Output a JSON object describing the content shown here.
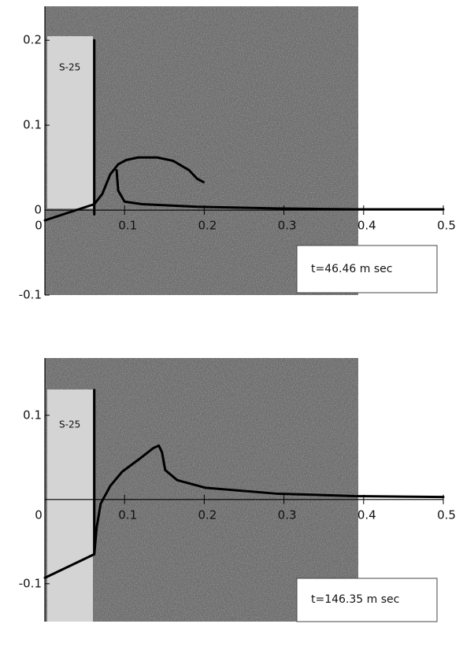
{
  "chart_data": [
    {
      "type": "line",
      "annotations": [
        "S-25",
        "t=46.46 m sec"
      ],
      "xlim": [
        0,
        0.5
      ],
      "ylim": [
        -0.1,
        0.24
      ],
      "xticks": [
        0,
        0.1,
        0.2,
        0.3,
        0.4,
        0.5
      ],
      "yticks": [
        -0.1,
        0,
        0.1,
        0.2
      ],
      "series": [
        {
          "color": "#000000",
          "x": [
            0.062,
            0.062
          ],
          "values": [
            -0.005,
            0.2
          ]
        },
        {
          "color": "#000000",
          "x": [
            0,
            0.062,
            0.072,
            0.082,
            0.092,
            0.102,
            0.117,
            0.141,
            0.161,
            0.181,
            0.191,
            0.199
          ],
          "values": [
            -0.012,
            0.007,
            0.019,
            0.042,
            0.054,
            0.059,
            0.062,
            0.062,
            0.058,
            0.047,
            0.037,
            0.033
          ]
        },
        {
          "color": "#000000",
          "x": [
            0.09,
            0.092,
            0.1,
            0.122,
            0.191,
            0.29,
            0.388,
            0.5
          ],
          "values": [
            0.047,
            0.023,
            0.01,
            0.007,
            0.004,
            0.002,
            0.001,
            0.001
          ]
        }
      ]
    },
    {
      "type": "line",
      "annotations": [
        "S-25",
        "t=146.35 m sec"
      ],
      "xlim": [
        0,
        0.5
      ],
      "ylim": [
        -0.145,
        0.168
      ],
      "xticks": [
        0,
        0.1,
        0.2,
        0.3,
        0.4,
        0.5
      ],
      "yticks": [
        -0.1,
        0.1
      ],
      "series": [
        {
          "color": "#000000",
          "x": [
            0.062,
            0.062
          ],
          "values": [
            -0.065,
            0.13
          ]
        },
        {
          "color": "#000000",
          "x": [
            0,
            0.062,
            0.065,
            0.07,
            0.082,
            0.097,
            0.117,
            0.136,
            0.143,
            0.147,
            0.151,
            0.166,
            0.201,
            0.29,
            0.388,
            0.5
          ],
          "values": [
            -0.093,
            -0.065,
            -0.033,
            -0.005,
            0.016,
            0.033,
            0.047,
            0.061,
            0.064,
            0.056,
            0.035,
            0.023,
            0.014,
            0.007,
            0.004,
            0.003
          ]
        }
      ]
    }
  ]
}
